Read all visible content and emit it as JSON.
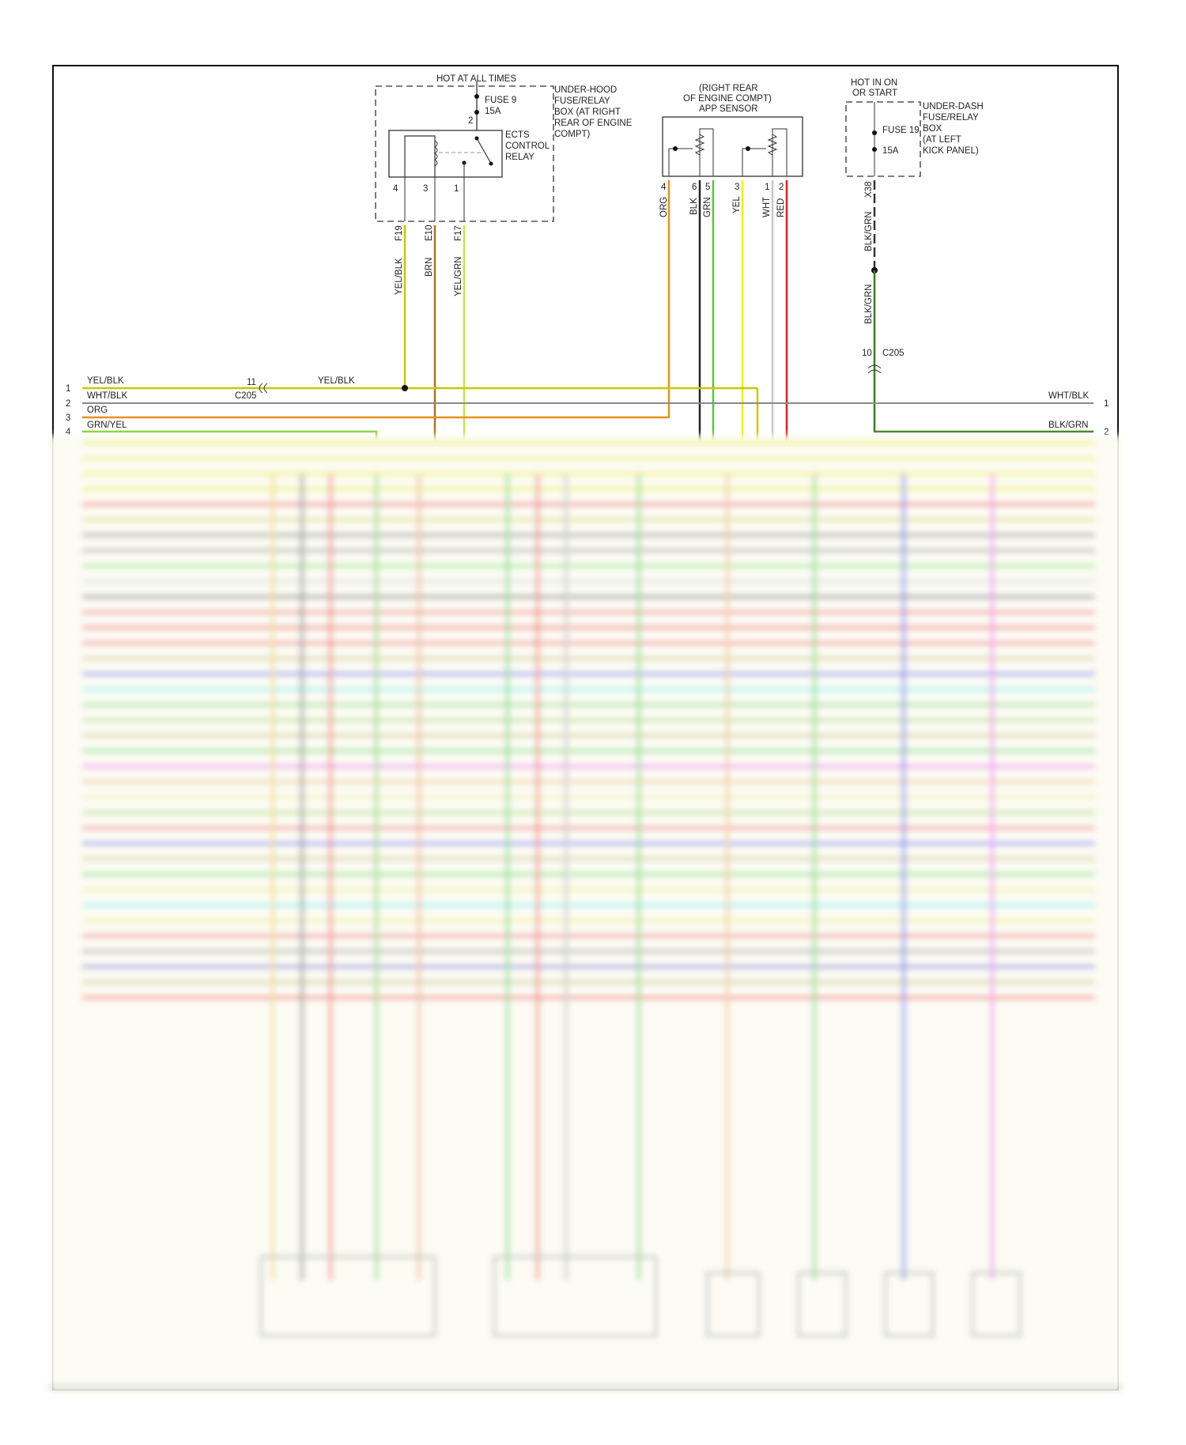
{
  "diagram": {
    "fuse_box_1": {
      "header": "HOT AT ALL TIMES",
      "fuse_name": "FUSE 9",
      "fuse_rating": "15A",
      "box_label": [
        "UNDER-HOOD",
        "FUSE/RELAY",
        "BOX (AT RIGHT",
        "REAR OF ENGINE",
        "COMPT)"
      ],
      "fuse_pin": "2"
    },
    "relay": {
      "label": [
        "ECTS",
        "CONTROL",
        "RELAY"
      ],
      "pins": [
        "4",
        "3",
        "1"
      ],
      "connectors": [
        "F19",
        "E10",
        "F17"
      ],
      "wire_colors": [
        "YEL/BLK",
        "BRN",
        "YEL/GRN"
      ]
    },
    "app_sensor": {
      "label": [
        "(RIGHT REAR",
        "OF ENGINE COMPT)",
        "APP SENSOR"
      ],
      "pins": [
        "4",
        "6",
        "5",
        "3",
        "1",
        "2"
      ],
      "wire_colors": [
        "ORG",
        "BLK",
        "GRN",
        "YEL",
        "WHT",
        "RED"
      ]
    },
    "fuse_box_2": {
      "header": [
        "HOT IN ON",
        "OR START"
      ],
      "fuse_name": "FUSE 19",
      "fuse_rating": "15A",
      "box_label": [
        "UNDER-DASH",
        "FUSE/RELAY",
        "BOX",
        "(AT LEFT",
        "KICK PANEL)"
      ],
      "connector": "X38",
      "wire_color_upper": "BLK/GRN",
      "wire_color_lower": "BLK/GRN",
      "c205_pin": "10",
      "c205_name": "C205"
    },
    "left_rows": [
      {
        "num": "1",
        "label": "YEL/BLK"
      },
      {
        "num": "2",
        "label": "WHT/BLK"
      },
      {
        "num": "3",
        "label": "ORG"
      },
      {
        "num": "4",
        "label": "GRN/YEL"
      }
    ],
    "c205_left": {
      "pin": "11",
      "name": "C205",
      "wire": "YEL/BLK"
    },
    "right_rows": [
      {
        "num": "1",
        "label": "WHT/BLK"
      },
      {
        "num": "2",
        "label": "BLK/GRN"
      }
    ]
  },
  "colors": {
    "yel_blk": "#c8c800",
    "brn": "#a07828",
    "yel_grn": "#c8e640",
    "org": "#e8901c",
    "blk": "#222222",
    "grn": "#60c040",
    "yel": "#f0f000",
    "wht": "#c8c8c8",
    "red": "#e02020",
    "wht_blk": "#8a8a8a",
    "blk_grn": "#3a7a20",
    "grn_yel": "#80d030"
  },
  "blurred_rows": [
    "#f0f060",
    "#f0f080",
    "#f0f060",
    "#f0f060",
    "#f08080",
    "#e0e090",
    "#a0a0a0",
    "#b0b0b0",
    "#a0e890",
    "#e0e0e0",
    "#909090",
    "#f09090",
    "#f08080",
    "#f09090",
    "#d8d0a0",
    "#9090f0",
    "#90f0f0",
    "#a0e090",
    "#c0e090",
    "#d8d0a0",
    "#90e090",
    "#f090f0",
    "#f0d0a0",
    "#f0f0c0",
    "#c0e090",
    "#f09090",
    "#9090f0",
    "#d8d0a0",
    "#90e090",
    "#f0f0a0",
    "#90f0f0",
    "#f0f0a0",
    "#f09090",
    "#b0b0b0",
    "#9090e0",
    "#d0d0a0",
    "#f08080"
  ]
}
